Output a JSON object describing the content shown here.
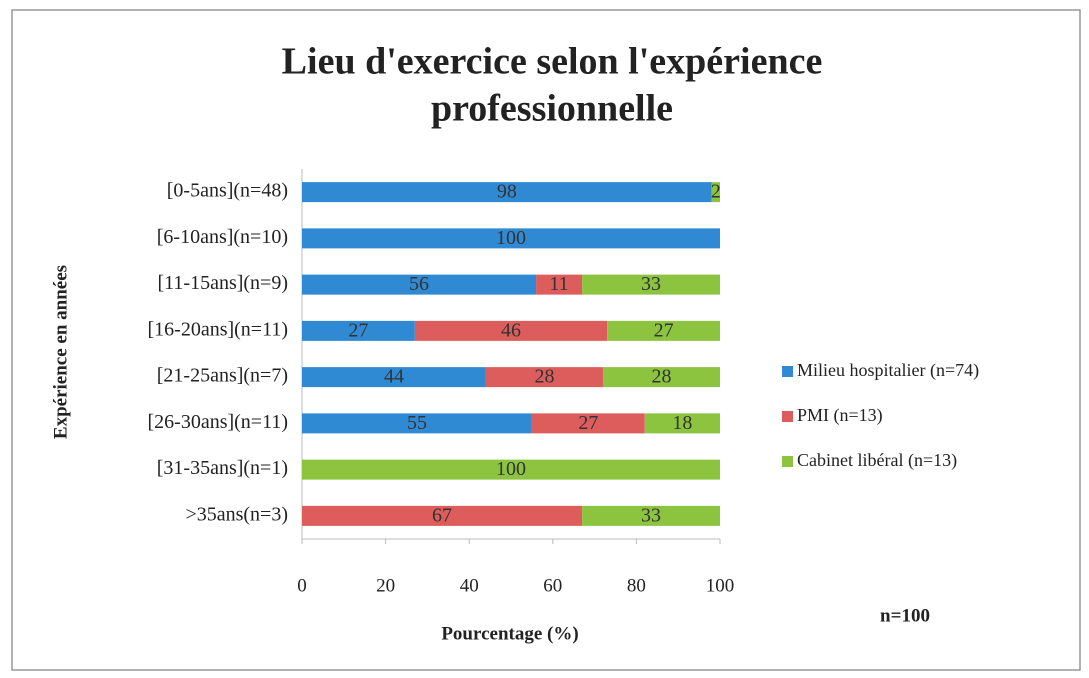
{
  "chart_data": {
    "type": "stacked_barh",
    "title": [
      "Lieu d'exercice selon l'expérience",
      "professionnelle"
    ],
    "categories": [
      "[0-5ans](n=48)",
      "[6-10ans](n=10)",
      "[11-15ans](n=9)",
      "[16-20ans](n=11)",
      "[21-25ans](n=7)",
      "[26-30ans](n=11)",
      "[31-35ans](n=1)",
      ">35ans(n=3)"
    ],
    "series": [
      {
        "name": "Milieu hospitalier (n=74)",
        "color": "#2f8ad3",
        "values": [
          98,
          100,
          56,
          27,
          44,
          55,
          0,
          0
        ]
      },
      {
        "name": "PMI (n=13)",
        "color": "#dd5c5c",
        "values": [
          0,
          0,
          11,
          46,
          28,
          27,
          0,
          67
        ]
      },
      {
        "name": "Cabinet libéral (n=13)",
        "color": "#8cc43f",
        "values": [
          2,
          0,
          33,
          27,
          28,
          18,
          100,
          33
        ]
      }
    ],
    "xlim": [
      0,
      100
    ],
    "xticks": [
      0,
      20,
      40,
      60,
      80,
      100
    ],
    "xlabel": "Pourcentage (%)",
    "ylabel": "Expérience en années",
    "annotation": "n=100",
    "legend": "right"
  }
}
